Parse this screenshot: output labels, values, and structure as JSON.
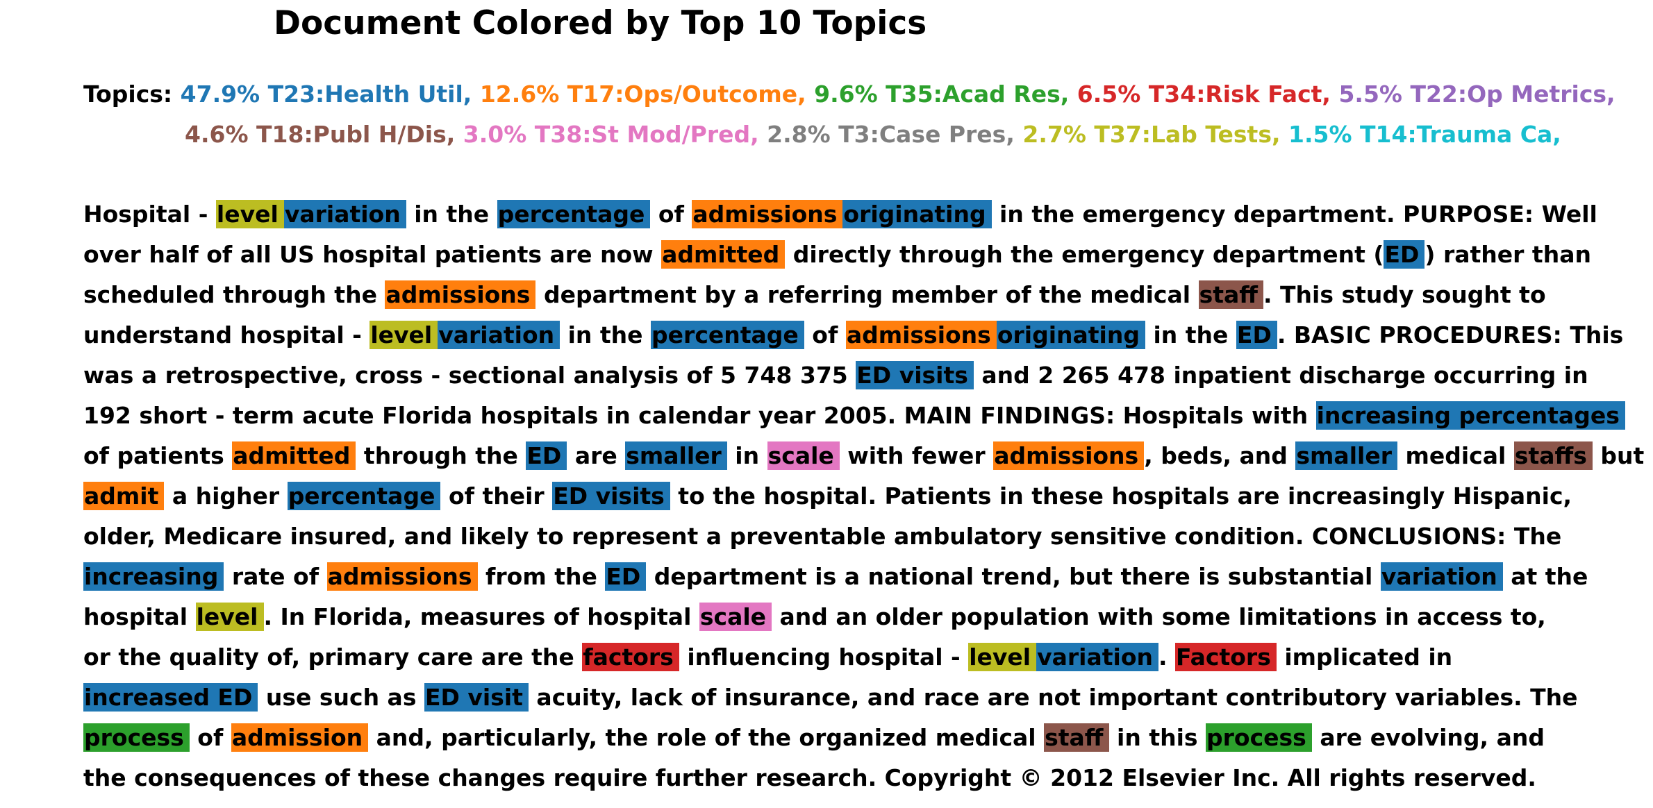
{
  "title": "Document Colored by Top 10 Topics",
  "topics_label": "Topics:",
  "topic_lines": [
    [
      {
        "text": "47.9% T23:Health Util,",
        "color": "#1f77b4"
      },
      {
        "text": "12.6% T17:Ops/Outcome,",
        "color": "#ff7f0e"
      },
      {
        "text": "9.6% T35:Acad Res,",
        "color": "#2ca02c"
      },
      {
        "text": "6.5% T34:Risk Fact,",
        "color": "#d62728"
      },
      {
        "text": "5.5% T22:Op Metrics,",
        "color": "#9467bd"
      }
    ],
    [
      {
        "text": "4.6% T18:Publ H/Dis,",
        "color": "#8c564b"
      },
      {
        "text": "3.0% T38:St Mod/Pred,",
        "color": "#e377c2"
      },
      {
        "text": "2.8% T3:Case Pres,",
        "color": "#7f7f7f"
      },
      {
        "text": "2.7% T37:Lab Tests,",
        "color": "#bcbd22"
      },
      {
        "text": "1.5% T14:Trauma Ca,",
        "color": "#17becf"
      }
    ]
  ],
  "doc_lines": [
    [
      {
        "t": "Hospital - "
      },
      {
        "t": "level",
        "c": "#bcbd22"
      },
      {
        "t": "variation",
        "c": "#1f77b4"
      },
      {
        "t": " in the "
      },
      {
        "t": "percentage",
        "c": "#1f77b4"
      },
      {
        "t": " of "
      },
      {
        "t": "admissions",
        "c": "#ff7f0e"
      },
      {
        "t": "originating",
        "c": "#1f77b4"
      },
      {
        "t": " in the emergency department. PURPOSE: Well"
      }
    ],
    [
      {
        "t": "over half of all US hospital patients are now "
      },
      {
        "t": "admitted",
        "c": "#ff7f0e"
      },
      {
        "t": " directly through the emergency department ("
      },
      {
        "t": "ED",
        "c": "#1f77b4"
      },
      {
        "t": ") rather than"
      }
    ],
    [
      {
        "t": "scheduled through the "
      },
      {
        "t": "admissions",
        "c": "#ff7f0e"
      },
      {
        "t": " department by a referring member of the medical "
      },
      {
        "t": "staff",
        "c": "#8c564b"
      },
      {
        "t": ". This study sought to"
      }
    ],
    [
      {
        "t": "understand hospital - "
      },
      {
        "t": "level",
        "c": "#bcbd22"
      },
      {
        "t": "variation",
        "c": "#1f77b4"
      },
      {
        "t": " in the "
      },
      {
        "t": "percentage",
        "c": "#1f77b4"
      },
      {
        "t": " of "
      },
      {
        "t": "admissions",
        "c": "#ff7f0e"
      },
      {
        "t": "originating",
        "c": "#1f77b4"
      },
      {
        "t": " in the "
      },
      {
        "t": "ED",
        "c": "#1f77b4"
      },
      {
        "t": ". BASIC PROCEDURES: This"
      }
    ],
    [
      {
        "t": "was a retrospective, cross - sectional analysis of 5 748 375 "
      },
      {
        "t": "ED visits",
        "c": "#1f77b4"
      },
      {
        "t": " and 2 265 478 inpatient discharge occurring in"
      }
    ],
    [
      {
        "t": "192 short - term acute Florida hospitals in calendar year 2005. MAIN FINDINGS: Hospitals with "
      },
      {
        "t": "increasing percentages",
        "c": "#1f77b4"
      }
    ],
    [
      {
        "t": "of patients "
      },
      {
        "t": "admitted",
        "c": "#ff7f0e"
      },
      {
        "t": " through the "
      },
      {
        "t": "ED",
        "c": "#1f77b4"
      },
      {
        "t": " are "
      },
      {
        "t": "smaller",
        "c": "#1f77b4"
      },
      {
        "t": " in "
      },
      {
        "t": "scale",
        "c": "#e377c2"
      },
      {
        "t": " with fewer "
      },
      {
        "t": "admissions",
        "c": "#ff7f0e"
      },
      {
        "t": ", beds, and "
      },
      {
        "t": "smaller",
        "c": "#1f77b4"
      },
      {
        "t": " medical "
      },
      {
        "t": "staffs",
        "c": "#8c564b"
      },
      {
        "t": " but"
      }
    ],
    [
      {
        "t": "admit",
        "c": "#ff7f0e"
      },
      {
        "t": " a higher "
      },
      {
        "t": "percentage",
        "c": "#1f77b4"
      },
      {
        "t": " of their "
      },
      {
        "t": "ED visits",
        "c": "#1f77b4"
      },
      {
        "t": " to the hospital. Patients in these hospitals are increasingly Hispanic,"
      }
    ],
    [
      {
        "t": "older, Medicare insured, and likely to represent a preventable ambulatory sensitive condition. CONCLUSIONS: The"
      }
    ],
    [
      {
        "t": "increasing",
        "c": "#1f77b4"
      },
      {
        "t": " rate of "
      },
      {
        "t": "admissions",
        "c": "#ff7f0e"
      },
      {
        "t": " from the "
      },
      {
        "t": "ED",
        "c": "#1f77b4"
      },
      {
        "t": " department is a national trend, but there is substantial "
      },
      {
        "t": "variation",
        "c": "#1f77b4"
      },
      {
        "t": " at the"
      }
    ],
    [
      {
        "t": "hospital "
      },
      {
        "t": "level",
        "c": "#bcbd22"
      },
      {
        "t": ". In Florida, measures of hospital "
      },
      {
        "t": "scale",
        "c": "#e377c2"
      },
      {
        "t": " and an older population with some limitations in access to,"
      }
    ],
    [
      {
        "t": "or the quality of, primary care are the "
      },
      {
        "t": "factors",
        "c": "#d62728"
      },
      {
        "t": " influencing hospital - "
      },
      {
        "t": "level",
        "c": "#bcbd22"
      },
      {
        "t": "variation",
        "c": "#1f77b4"
      },
      {
        "t": ". "
      },
      {
        "t": "Factors",
        "c": "#d62728"
      },
      {
        "t": " implicated in"
      }
    ],
    [
      {
        "t": "increased ED",
        "c": "#1f77b4"
      },
      {
        "t": " use such as "
      },
      {
        "t": "ED visit",
        "c": "#1f77b4"
      },
      {
        "t": " acuity, lack of insurance, and race are not important contributory variables. The"
      }
    ],
    [
      {
        "t": "process",
        "c": "#2ca02c"
      },
      {
        "t": " of "
      },
      {
        "t": "admission",
        "c": "#ff7f0e"
      },
      {
        "t": " and, particularly, the role of the organized medical "
      },
      {
        "t": "staff",
        "c": "#8c564b"
      },
      {
        "t": " in this "
      },
      {
        "t": "process",
        "c": "#2ca02c"
      },
      {
        "t": " are evolving, and"
      }
    ],
    [
      {
        "t": "the consequences of these changes require further research. Copyright © 2012 Elsevier Inc. All rights reserved."
      }
    ]
  ]
}
